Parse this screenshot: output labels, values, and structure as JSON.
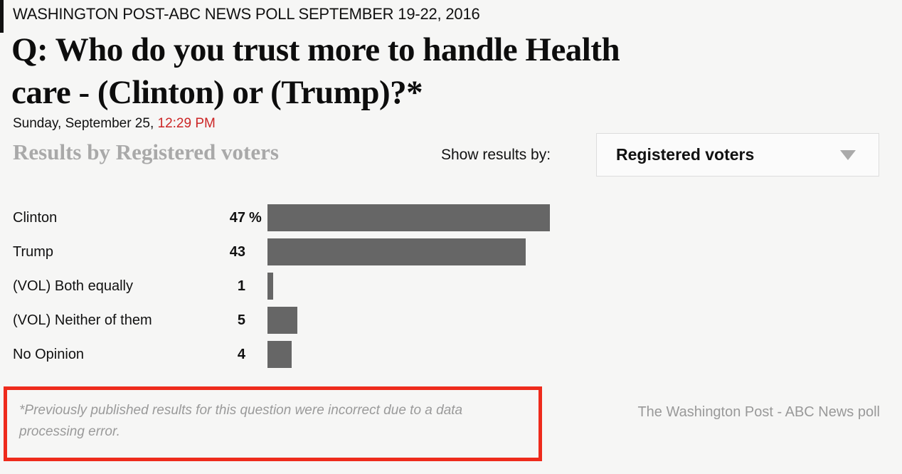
{
  "kicker": "WASHINGTON POST-ABC NEWS POLL SEPTEMBER 19-22, 2016",
  "headline_lines": [
    "Q: Who do you trust more to handle Health",
    "care - (Clinton) or (Trump)?*"
  ],
  "dateline": {
    "date": "Sunday, September 25, ",
    "time": "12:29 PM",
    "time_color": "#cc2626"
  },
  "results_heading": "Results by Registered voters",
  "filter": {
    "label": "Show results by:",
    "selected": "Registered voters"
  },
  "chart_data": {
    "type": "bar",
    "orientation": "horizontal",
    "categories": [
      "Clinton",
      "Trump",
      "(VOL) Both equally",
      "(VOL) Neither of them",
      "No Opinion"
    ],
    "values": [
      47,
      43,
      1,
      5,
      4
    ],
    "value_labels": [
      "47",
      "43",
      "1",
      "5",
      "4"
    ],
    "unit_on_first_row": "%",
    "bar_color": "#666666",
    "xlim": [
      0,
      100
    ],
    "grid": false,
    "legend": false
  },
  "footnote": "*Previously published results for this question were incorrect due to a data processing error.",
  "credit": "The Washington Post - ABC News poll",
  "colors": {
    "background": "#f6f6f5",
    "bar": "#666666",
    "footnote_border": "#ee2b1c",
    "muted_heading": "#a9a9a9",
    "credit_gray": "#999999",
    "time_red": "#cc2626"
  }
}
